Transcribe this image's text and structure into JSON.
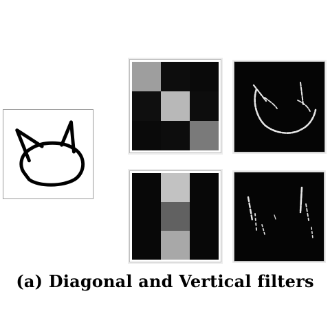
{
  "caption": "(a) Diagonal and Vertical filters",
  "input_image": {
    "icon": "cat-head-outline-drawing"
  },
  "filters": {
    "diagonal": {
      "grid": [
        [
          0.62,
          0.05,
          0.04
        ],
        [
          0.06,
          0.72,
          0.05
        ],
        [
          0.04,
          0.05,
          0.48
        ]
      ]
    },
    "vertical": {
      "grid": [
        [
          0.03,
          0.76,
          0.03
        ],
        [
          0.03,
          0.38,
          0.03
        ],
        [
          0.03,
          0.66,
          0.03
        ]
      ]
    }
  },
  "colors": {
    "filter_background": "#050505",
    "edge_response": "#e6e6e6",
    "drawing_stroke": "#000000"
  }
}
